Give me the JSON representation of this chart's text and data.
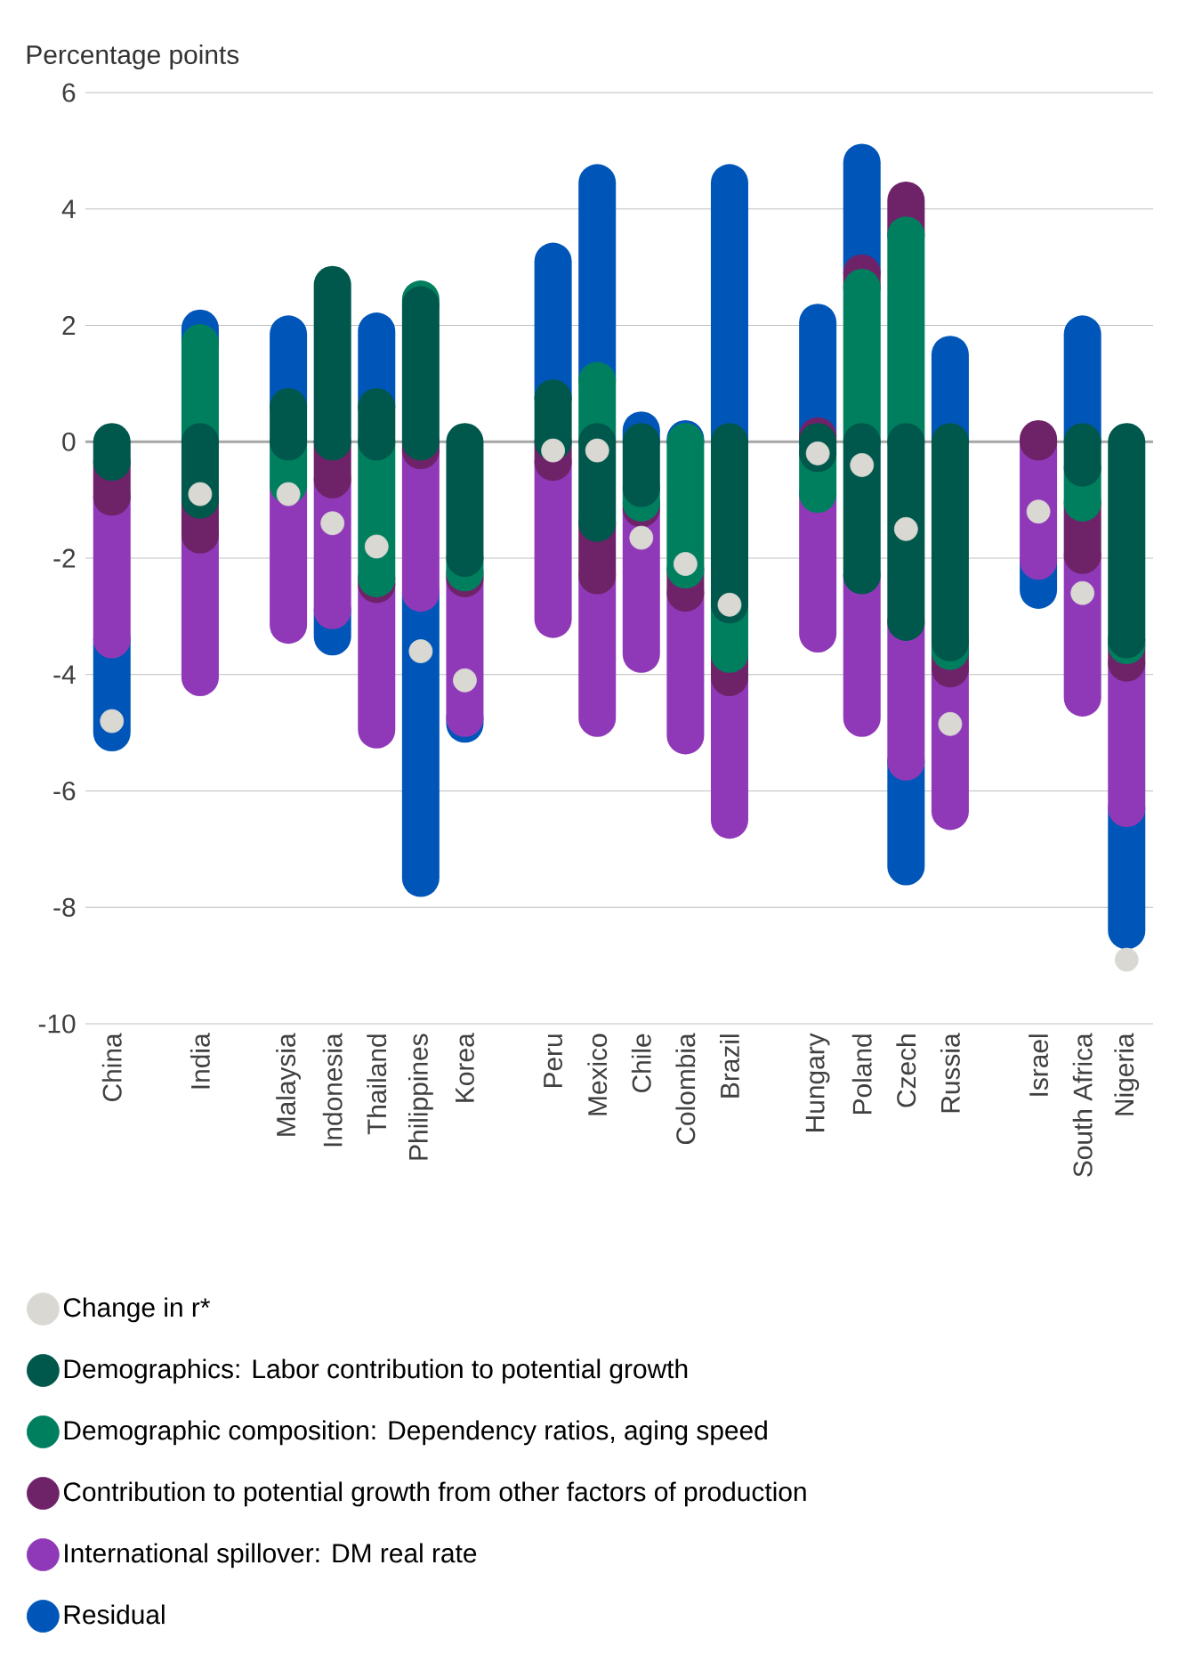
{
  "chart_data": {
    "type": "bar",
    "stacked": true,
    "ylabel": "Percentage points",
    "categories": [
      "China",
      null,
      "India",
      null,
      "Malaysia",
      "Indonesia",
      "Thailand",
      "Philippines",
      "Korea",
      null,
      "Peru",
      "Mexico",
      "Chile",
      "Colombia",
      "Brazil",
      null,
      "Hungary",
      "Poland",
      "Czech",
      "Russia",
      null,
      "Israel",
      "South Africa",
      "Nigeria"
    ],
    "series": [
      {
        "name": "Change in r*",
        "type": "scatter",
        "color": "#d9d8d3",
        "values": [
          -4.8,
          null,
          -0.9,
          null,
          -0.9,
          -1.4,
          -1.8,
          -3.6,
          -4.1,
          null,
          -0.15,
          -0.15,
          -1.65,
          -2.1,
          -2.8,
          null,
          -0.2,
          -0.4,
          -1.5,
          -4.85,
          null,
          -1.2,
          -2.6,
          -8.9
        ]
      },
      {
        "name": "Demographics: Labor contribution to potential growth",
        "color": "#00574b",
        "values": [
          -0.35,
          null,
          -1.0,
          null,
          0.6,
          2.7,
          0.6,
          2.35,
          -2.0,
          null,
          0.75,
          -1.4,
          -0.8,
          null,
          -2.8,
          null,
          -0.2,
          -2.3,
          -3.1,
          -3.45,
          null,
          null,
          -0.45,
          -3.4
        ]
      },
      {
        "name": "Demographic composition: Dependency ratios, aging speed",
        "color": "#007f5f",
        "values": [
          null,
          null,
          1.7,
          null,
          -0.75,
          null,
          -2.35,
          0.1,
          -0.25,
          null,
          null,
          1.05,
          -0.25,
          -2.2,
          -0.85,
          null,
          -0.7,
          2.65,
          3.55,
          -0.15,
          null,
          null,
          -0.6,
          -0.1
        ]
      },
      {
        "name": "Contribution to potential growth from other factors of production",
        "color": "#6e2369",
        "values": [
          -0.6,
          null,
          -0.6,
          null,
          null,
          -0.65,
          -0.1,
          -0.15,
          -0.1,
          null,
          -0.35,
          -0.9,
          -0.1,
          -0.4,
          -0.4,
          null,
          0.1,
          0.25,
          0.6,
          -0.3,
          null,
          0.05,
          -0.9,
          -0.3
        ]
      },
      {
        "name": "International spillover: DM real rate",
        "color": "#9039b8",
        "values": [
          -2.45,
          null,
          -2.45,
          null,
          -2.4,
          -2.25,
          -2.5,
          -2.45,
          -2.4,
          null,
          -2.7,
          -2.45,
          -2.5,
          -2.45,
          -2.45,
          null,
          -2.4,
          -2.45,
          -2.4,
          -2.45,
          null,
          -2.05,
          -2.45,
          -2.5
        ]
      },
      {
        "name": "Residual",
        "color": "#0056b8",
        "values": [
          -1.6,
          null,
          0.25,
          null,
          1.25,
          -0.45,
          1.3,
          -4.9,
          -0.1,
          null,
          2.35,
          3.4,
          0.2,
          0.05,
          4.45,
          null,
          1.95,
          1.9,
          -1.8,
          1.5,
          null,
          -0.5,
          1.85,
          -2.1
        ]
      }
    ],
    "ylim": [
      -10,
      6
    ],
    "yticks": [
      -10,
      -8,
      -6,
      -4,
      -2,
      0,
      2,
      4,
      6
    ],
    "grid": "y",
    "legend": "bottom"
  }
}
